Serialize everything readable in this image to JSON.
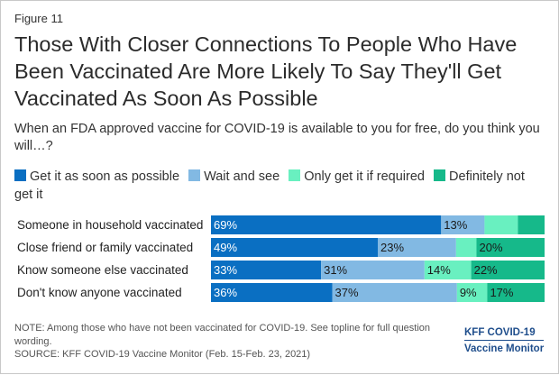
{
  "figure_label": "Figure 11",
  "title": "Those With Closer Connections To People Who Have Been Vaccinated Are More Likely To Say They'll Get Vaccinated As Soon As Possible",
  "subtitle": "When an FDA approved vaccine for COVID-19 is available to you for free, do you think you will…?",
  "note": "NOTE: Among those who have not been vaccinated for COVID-19. See topline for full question wording.",
  "source": "SOURCE: KFF COVID-19 Vaccine Monitor (Feb. 15-Feb. 23, 2021)",
  "brand": {
    "line1": "KFF COVID-19",
    "line2": "Vaccine Monitor"
  },
  "colors": {
    "soon": "#0a6fc2",
    "wait": "#82b9e3",
    "required": "#69f0c0",
    "never": "#16b98a"
  },
  "chart_data": {
    "type": "bar",
    "orientation": "horizontal",
    "stacked": true,
    "categories": [
      "Someone in household vaccinated",
      "Close friend or family vaccinated",
      "Know someone else vaccinated",
      "Don't know anyone vaccinated"
    ],
    "series": [
      {
        "name": "Get it as soon as possible",
        "values": [
          69,
          49,
          33,
          36
        ],
        "labels": [
          "69%",
          "49%",
          "33%",
          "36%"
        ]
      },
      {
        "name": "Wait and see",
        "values": [
          13,
          23,
          31,
          37
        ],
        "labels": [
          "13%",
          "23%",
          "31%",
          "37%"
        ]
      },
      {
        "name": "Only get it if required",
        "values": [
          10,
          6,
          14,
          9
        ],
        "labels": [
          "",
          "",
          "14%",
          "9%"
        ]
      },
      {
        "name": "Definitely not get it",
        "values": [
          8,
          20,
          22,
          17
        ],
        "labels": [
          "",
          "20%",
          "22%",
          "17%"
        ]
      }
    ],
    "xlim": [
      0,
      100
    ],
    "grid": false,
    "legend_position": "top"
  }
}
